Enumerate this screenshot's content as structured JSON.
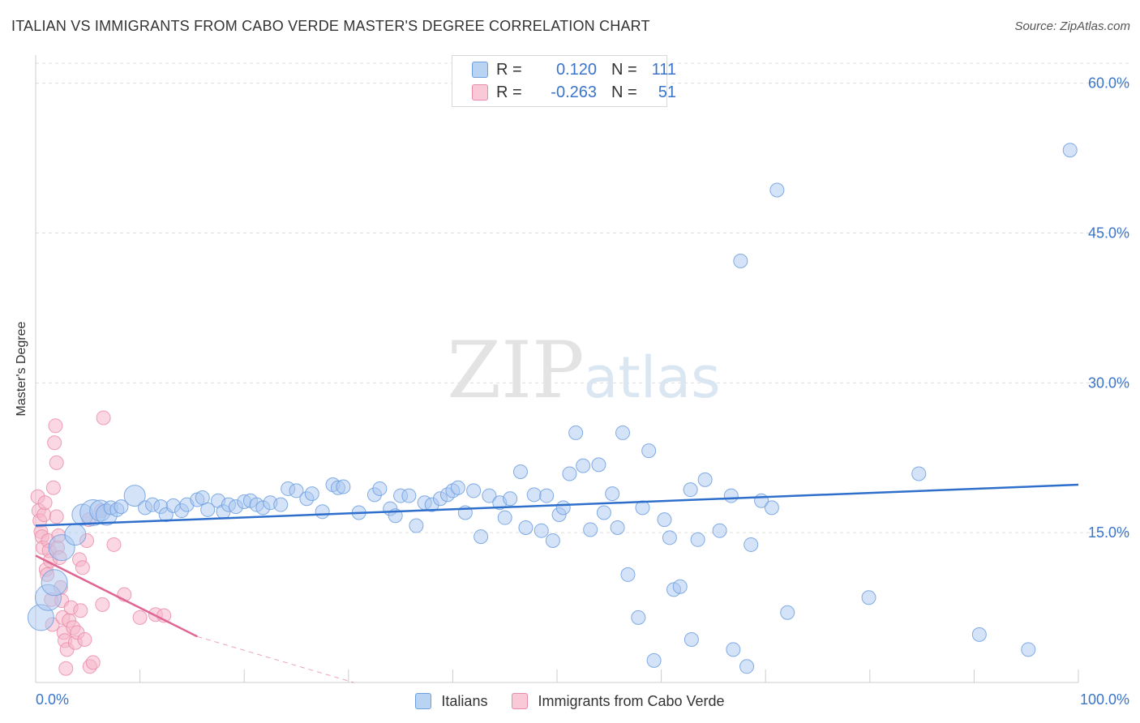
{
  "title": "ITALIAN VS IMMIGRANTS FROM CABO VERDE MASTER'S DEGREE CORRELATION CHART",
  "source": "Source: ZipAtlas.com",
  "watermark": {
    "zip": "ZIP",
    "atlas": "atlas"
  },
  "legend": {
    "r_label": "R =",
    "n_label": "N =",
    "rows": [
      {
        "r": "0.120",
        "n": "111"
      },
      {
        "r": "-0.263",
        "n": "51"
      }
    ]
  },
  "colors": {
    "blue_fill": "#a9c8f0",
    "blue_stroke": "#6d9fe0",
    "blue_line": "#2e6fcc",
    "pink_fill": "#f6b6ca",
    "pink_stroke": "#e88aa8",
    "pink_line": "#e06593",
    "axis_text": "#3a74c9",
    "grid": "#dddddd"
  },
  "chart_data": {
    "type": "scatter",
    "title": "ITALIAN VS IMMIGRANTS FROM CABO VERDE MASTER'S DEGREE CORRELATION CHART",
    "ylabel": "Master's Degree",
    "xlabel": "",
    "xlim": [
      0,
      100
    ],
    "ylim": [
      0,
      62
    ],
    "x_ticks": [
      0,
      10,
      20,
      30,
      40,
      50,
      60,
      70,
      80,
      90,
      100
    ],
    "x_tick_labels": [
      {
        "value": 0,
        "label": "0.0%"
      },
      {
        "value": 100,
        "label": "100.0%"
      }
    ],
    "y_ticks": [
      {
        "value": 15,
        "label": "15.0%"
      },
      {
        "value": 30,
        "label": "30.0%"
      },
      {
        "value": 45,
        "label": "45.0%"
      },
      {
        "value": 60,
        "label": "60.0%"
      }
    ],
    "grid": true,
    "legend_position": "bottom",
    "series": [
      {
        "name": "Italians",
        "color": "#a9c8f0",
        "trendline": {
          "x": [
            0,
            100
          ],
          "y": [
            15.7,
            19.8
          ]
        },
        "points": [
          {
            "x": 0.5,
            "y": 6.5,
            "s": 3
          },
          {
            "x": 1.2,
            "y": 8.5,
            "s": 3
          },
          {
            "x": 1.8,
            "y": 10,
            "s": 3
          },
          {
            "x": 2.5,
            "y": 13.5,
            "s": 3
          },
          {
            "x": 3.8,
            "y": 14.8,
            "s": 2
          },
          {
            "x": 4.5,
            "y": 16.8,
            "s": 2
          },
          {
            "x": 5.5,
            "y": 17,
            "s": 3
          },
          {
            "x": 6.2,
            "y": 17.2,
            "s": 2
          },
          {
            "x": 6.8,
            "y": 16.8,
            "s": 2
          },
          {
            "x": 7.2,
            "y": 17.5,
            "s": 1
          },
          {
            "x": 7.8,
            "y": 17.3,
            "s": 1
          },
          {
            "x": 8.2,
            "y": 17.6,
            "s": 1
          },
          {
            "x": 9.5,
            "y": 18.7,
            "s": 2
          },
          {
            "x": 10.5,
            "y": 17.5,
            "s": 1
          },
          {
            "x": 11.2,
            "y": 17.8,
            "s": 1
          },
          {
            "x": 12,
            "y": 17.6,
            "s": 1
          },
          {
            "x": 12.5,
            "y": 16.8,
            "s": 1
          },
          {
            "x": 13.2,
            "y": 17.7,
            "s": 1
          },
          {
            "x": 14,
            "y": 17.2,
            "s": 1
          },
          {
            "x": 14.5,
            "y": 17.8,
            "s": 1
          },
          {
            "x": 15.5,
            "y": 18.3,
            "s": 1
          },
          {
            "x": 16,
            "y": 18.5,
            "s": 1
          },
          {
            "x": 16.5,
            "y": 17.3,
            "s": 1
          },
          {
            "x": 17.5,
            "y": 18.2,
            "s": 1
          },
          {
            "x": 18,
            "y": 17.1,
            "s": 1
          },
          {
            "x": 18.5,
            "y": 17.8,
            "s": 1
          },
          {
            "x": 19.2,
            "y": 17.6,
            "s": 1
          },
          {
            "x": 20,
            "y": 18.1,
            "s": 1
          },
          {
            "x": 20.6,
            "y": 18.2,
            "s": 1
          },
          {
            "x": 21.2,
            "y": 17.8,
            "s": 1
          },
          {
            "x": 21.8,
            "y": 17.5,
            "s": 1
          },
          {
            "x": 22.5,
            "y": 18,
            "s": 1
          },
          {
            "x": 23.5,
            "y": 17.8,
            "s": 1
          },
          {
            "x": 24.2,
            "y": 19.4,
            "s": 1
          },
          {
            "x": 25,
            "y": 19.2,
            "s": 1
          },
          {
            "x": 26,
            "y": 18.4,
            "s": 1
          },
          {
            "x": 26.5,
            "y": 18.9,
            "s": 1
          },
          {
            "x": 27.5,
            "y": 17.1,
            "s": 1
          },
          {
            "x": 28.5,
            "y": 19.8,
            "s": 1
          },
          {
            "x": 29,
            "y": 19.5,
            "s": 1
          },
          {
            "x": 29.5,
            "y": 19.6,
            "s": 1
          },
          {
            "x": 31,
            "y": 17,
            "s": 1
          },
          {
            "x": 32.5,
            "y": 18.8,
            "s": 1
          },
          {
            "x": 33,
            "y": 19.4,
            "s": 1
          },
          {
            "x": 34,
            "y": 17.4,
            "s": 1
          },
          {
            "x": 34.5,
            "y": 16.7,
            "s": 1
          },
          {
            "x": 35,
            "y": 18.7,
            "s": 1
          },
          {
            "x": 35.8,
            "y": 18.7,
            "s": 1
          },
          {
            "x": 36.5,
            "y": 15.7,
            "s": 1
          },
          {
            "x": 37.3,
            "y": 18,
            "s": 1
          },
          {
            "x": 38,
            "y": 17.8,
            "s": 1
          },
          {
            "x": 38.8,
            "y": 18.4,
            "s": 1
          },
          {
            "x": 39.5,
            "y": 18.8,
            "s": 1
          },
          {
            "x": 40,
            "y": 19.2,
            "s": 1
          },
          {
            "x": 40.5,
            "y": 19.5,
            "s": 1
          },
          {
            "x": 41.2,
            "y": 17,
            "s": 1
          },
          {
            "x": 42,
            "y": 19.2,
            "s": 1
          },
          {
            "x": 42.7,
            "y": 14.6,
            "s": 1
          },
          {
            "x": 43.5,
            "y": 18.7,
            "s": 1
          },
          {
            "x": 44.5,
            "y": 18,
            "s": 1
          },
          {
            "x": 45,
            "y": 16.5,
            "s": 1
          },
          {
            "x": 45.5,
            "y": 18.4,
            "s": 1
          },
          {
            "x": 46.5,
            "y": 21.1,
            "s": 1
          },
          {
            "x": 47,
            "y": 15.5,
            "s": 1
          },
          {
            "x": 47.8,
            "y": 18.8,
            "s": 1
          },
          {
            "x": 48.5,
            "y": 15.2,
            "s": 1
          },
          {
            "x": 49,
            "y": 18.7,
            "s": 1
          },
          {
            "x": 49.6,
            "y": 14.2,
            "s": 1
          },
          {
            "x": 50.2,
            "y": 16.8,
            "s": 1
          },
          {
            "x": 50.6,
            "y": 17.5,
            "s": 1
          },
          {
            "x": 51.2,
            "y": 20.9,
            "s": 1
          },
          {
            "x": 51.8,
            "y": 25,
            "s": 1
          },
          {
            "x": 52.5,
            "y": 21.7,
            "s": 1
          },
          {
            "x": 53.2,
            "y": 15.3,
            "s": 1
          },
          {
            "x": 54,
            "y": 21.8,
            "s": 1
          },
          {
            "x": 54.5,
            "y": 17,
            "s": 1
          },
          {
            "x": 55.3,
            "y": 18.9,
            "s": 1
          },
          {
            "x": 55.8,
            "y": 15.5,
            "s": 1
          },
          {
            "x": 56.3,
            "y": 25,
            "s": 1
          },
          {
            "x": 56.8,
            "y": 10.8,
            "s": 1
          },
          {
            "x": 57.8,
            "y": 6.5,
            "s": 1
          },
          {
            "x": 58.2,
            "y": 17.5,
            "s": 1
          },
          {
            "x": 58.8,
            "y": 23.2,
            "s": 1
          },
          {
            "x": 59.3,
            "y": 2.2,
            "s": 1
          },
          {
            "x": 60.3,
            "y": 16.3,
            "s": 1
          },
          {
            "x": 60.8,
            "y": 14.5,
            "s": 1
          },
          {
            "x": 61.2,
            "y": 9.3,
            "s": 1
          },
          {
            "x": 61.8,
            "y": 9.6,
            "s": 1
          },
          {
            "x": 62.8,
            "y": 19.3,
            "s": 1
          },
          {
            "x": 62.9,
            "y": 4.3,
            "s": 1
          },
          {
            "x": 63.5,
            "y": 14.3,
            "s": 1
          },
          {
            "x": 64.2,
            "y": 20.3,
            "s": 1
          },
          {
            "x": 65.6,
            "y": 15.2,
            "s": 1
          },
          {
            "x": 66.7,
            "y": 18.7,
            "s": 1
          },
          {
            "x": 66.9,
            "y": 3.3,
            "s": 1
          },
          {
            "x": 67.6,
            "y": 42.2,
            "s": 1
          },
          {
            "x": 68.2,
            "y": 1.6,
            "s": 1
          },
          {
            "x": 68.6,
            "y": 13.8,
            "s": 1
          },
          {
            "x": 69.6,
            "y": 18.2,
            "s": 1
          },
          {
            "x": 70.6,
            "y": 17.5,
            "s": 1
          },
          {
            "x": 71.1,
            "y": 49.3,
            "s": 1
          },
          {
            "x": 72.1,
            "y": 7,
            "s": 1
          },
          {
            "x": 79.9,
            "y": 8.5,
            "s": 1
          },
          {
            "x": 84.7,
            "y": 20.9,
            "s": 1
          },
          {
            "x": 90.5,
            "y": 4.8,
            "s": 1
          },
          {
            "x": 95.2,
            "y": 3.3,
            "s": 1
          },
          {
            "x": 99.2,
            "y": 53.3,
            "s": 1
          }
        ]
      },
      {
        "name": "Immigrants from Cabo Verde",
        "color": "#f6b6ca",
        "trendline": {
          "x": [
            0,
            15.5
          ],
          "y": [
            12.7,
            4.6
          ],
          "dashed_to": {
            "x": 30.5,
            "y": 0
          }
        },
        "points": [
          {
            "x": 0.2,
            "y": 18.6,
            "s": 1
          },
          {
            "x": 0.3,
            "y": 17.2,
            "s": 1
          },
          {
            "x": 0.4,
            "y": 16.2,
            "s": 1
          },
          {
            "x": 0.5,
            "y": 15.1,
            "s": 1
          },
          {
            "x": 0.6,
            "y": 14.6,
            "s": 1
          },
          {
            "x": 0.7,
            "y": 13.5,
            "s": 1
          },
          {
            "x": 0.8,
            "y": 16.8,
            "s": 1
          },
          {
            "x": 0.9,
            "y": 18,
            "s": 1
          },
          {
            "x": 1,
            "y": 11.3,
            "s": 1
          },
          {
            "x": 1.1,
            "y": 10.8,
            "s": 1
          },
          {
            "x": 1.2,
            "y": 14.2,
            "s": 1
          },
          {
            "x": 1.3,
            "y": 13.2,
            "s": 1
          },
          {
            "x": 1.4,
            "y": 12.2,
            "s": 1
          },
          {
            "x": 1.5,
            "y": 8.3,
            "s": 1
          },
          {
            "x": 1.6,
            "y": 5.8,
            "s": 1
          },
          {
            "x": 1.7,
            "y": 19.5,
            "s": 1
          },
          {
            "x": 1.8,
            "y": 24,
            "s": 1
          },
          {
            "x": 1.9,
            "y": 25.7,
            "s": 1
          },
          {
            "x": 2,
            "y": 16.6,
            "s": 1
          },
          {
            "x": 2.1,
            "y": 13.5,
            "s": 1
          },
          {
            "x": 2.2,
            "y": 14.7,
            "s": 1
          },
          {
            "x": 2.3,
            "y": 12.5,
            "s": 1
          },
          {
            "x": 2.4,
            "y": 9.5,
            "s": 1
          },
          {
            "x": 2.5,
            "y": 8.2,
            "s": 1
          },
          {
            "x": 2.6,
            "y": 6.5,
            "s": 1
          },
          {
            "x": 2.7,
            "y": 5,
            "s": 1
          },
          {
            "x": 2.8,
            "y": 4.2,
            "s": 1
          },
          {
            "x": 2.9,
            "y": 1.4,
            "s": 1
          },
          {
            "x": 3,
            "y": 3.3,
            "s": 1
          },
          {
            "x": 3.2,
            "y": 6.2,
            "s": 1
          },
          {
            "x": 3.4,
            "y": 7.5,
            "s": 1
          },
          {
            "x": 3.6,
            "y": 5.5,
            "s": 1
          },
          {
            "x": 3.8,
            "y": 4,
            "s": 1
          },
          {
            "x": 4,
            "y": 5,
            "s": 1
          },
          {
            "x": 4.2,
            "y": 12.3,
            "s": 1
          },
          {
            "x": 4.3,
            "y": 7.2,
            "s": 1
          },
          {
            "x": 4.5,
            "y": 11.5,
            "s": 1
          },
          {
            "x": 4.7,
            "y": 4.3,
            "s": 1
          },
          {
            "x": 4.9,
            "y": 14.2,
            "s": 1
          },
          {
            "x": 5.1,
            "y": 16.3,
            "s": 1
          },
          {
            "x": 5.2,
            "y": 1.6,
            "s": 1
          },
          {
            "x": 5.5,
            "y": 2,
            "s": 1
          },
          {
            "x": 6.3,
            "y": 17.2,
            "s": 1
          },
          {
            "x": 6.4,
            "y": 7.8,
            "s": 1
          },
          {
            "x": 6.5,
            "y": 26.5,
            "s": 1
          },
          {
            "x": 7.5,
            "y": 13.8,
            "s": 1
          },
          {
            "x": 8.5,
            "y": 8.8,
            "s": 1
          },
          {
            "x": 10,
            "y": 6.5,
            "s": 1
          },
          {
            "x": 11.5,
            "y": 6.8,
            "s": 1
          },
          {
            "x": 12.3,
            "y": 6.7,
            "s": 1
          },
          {
            "x": 2,
            "y": 22,
            "s": 1
          }
        ]
      }
    ]
  }
}
